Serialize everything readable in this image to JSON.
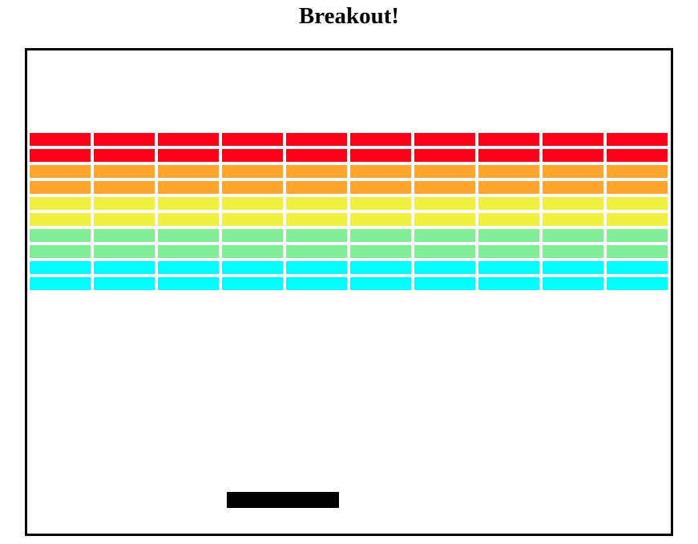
{
  "page": {
    "title": "Breakout!"
  },
  "game": {
    "brick_rows": [
      {
        "color": "#ff0018"
      },
      {
        "color": "#ff0018"
      },
      {
        "color": "#ffa52c"
      },
      {
        "color": "#ffa52c"
      },
      {
        "color": "#f0f040"
      },
      {
        "color": "#f0f040"
      },
      {
        "color": "#80ee96"
      },
      {
        "color": "#80ee96"
      },
      {
        "color": "#00ffff"
      },
      {
        "color": "#00ffff"
      }
    ],
    "bricks_per_row": 10,
    "paddle_color": "#000000",
    "board_border_color": "#000000"
  }
}
